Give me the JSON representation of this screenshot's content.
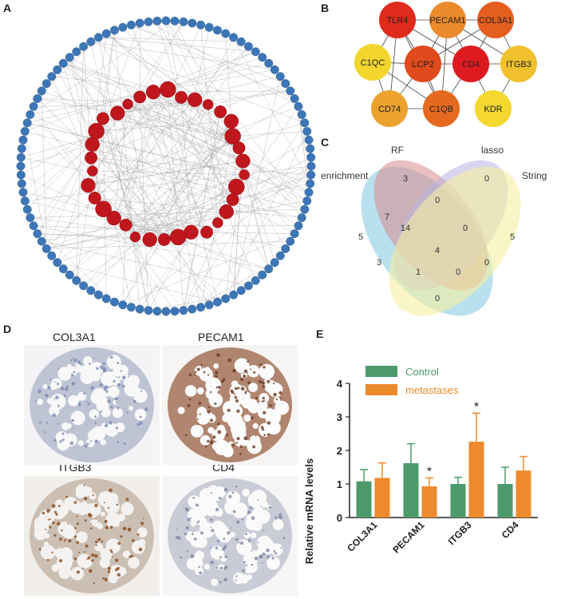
{
  "panels": {
    "a": "A",
    "b": "B",
    "c": "C",
    "d": "D",
    "e": "E"
  },
  "network_b": {
    "nodes": [
      {
        "label": "TLR4",
        "color": "#e02a1c"
      },
      {
        "label": "PECAM1",
        "color": "#eb8a2a"
      },
      {
        "label": "COL3A1",
        "color": "#e45e1e"
      },
      {
        "label": "C1QC",
        "color": "#f2d62d"
      },
      {
        "label": "LCP2",
        "color": "#e14a1c"
      },
      {
        "label": "CD4",
        "color": "#de1a1f"
      },
      {
        "label": "ITGB3",
        "color": "#f0c02e"
      },
      {
        "label": "CD74",
        "color": "#eca32d"
      },
      {
        "label": "C1QB",
        "color": "#e5691f"
      },
      {
        "label": "KDR",
        "color": "#f4d82f"
      }
    ]
  },
  "venn": {
    "sets": [
      "RF",
      "lasso",
      "enrichment",
      "String"
    ],
    "colors": {
      "enrichment": "#7fc6e0",
      "RF": "#d98a8a",
      "lasso": "#b9b3e0",
      "String": "#f5efa0"
    },
    "counts": [
      "3",
      "0",
      "7",
      "0",
      "5",
      "14",
      "0",
      "5",
      "4",
      "3",
      "0",
      "1",
      "0",
      "0"
    ]
  },
  "ihc_tiles": [
    {
      "label": "COL3A1"
    },
    {
      "label": "PECAM1"
    },
    {
      "label": "ITGB3"
    },
    {
      "label": "CD4"
    }
  ],
  "chart_data": {
    "type": "bar",
    "categories": [
      "COL3A1",
      "PECAM1",
      "ITGB3",
      "CD4"
    ],
    "series": [
      {
        "name": "Control",
        "color": "#4c9a6a",
        "values": [
          1.08,
          1.62,
          1.0,
          1.0
        ],
        "errors": [
          0.35,
          0.58,
          0.2,
          0.5
        ]
      },
      {
        "name": "metastases",
        "color": "#ec8a2c",
        "values": [
          1.18,
          0.93,
          2.26,
          1.4
        ],
        "errors": [
          0.45,
          0.25,
          0.85,
          0.42
        ]
      }
    ],
    "significance": [
      {
        "category": "PECAM1",
        "series": "metastases",
        "mark": "*"
      },
      {
        "category": "ITGB3",
        "series": "metastases",
        "mark": "*"
      }
    ],
    "ylabel": "Relative mRNA levels",
    "ylim": [
      0,
      4
    ],
    "yticks": [
      "0",
      "1",
      "2",
      "3",
      "4"
    ],
    "legend_position": "top-right"
  }
}
